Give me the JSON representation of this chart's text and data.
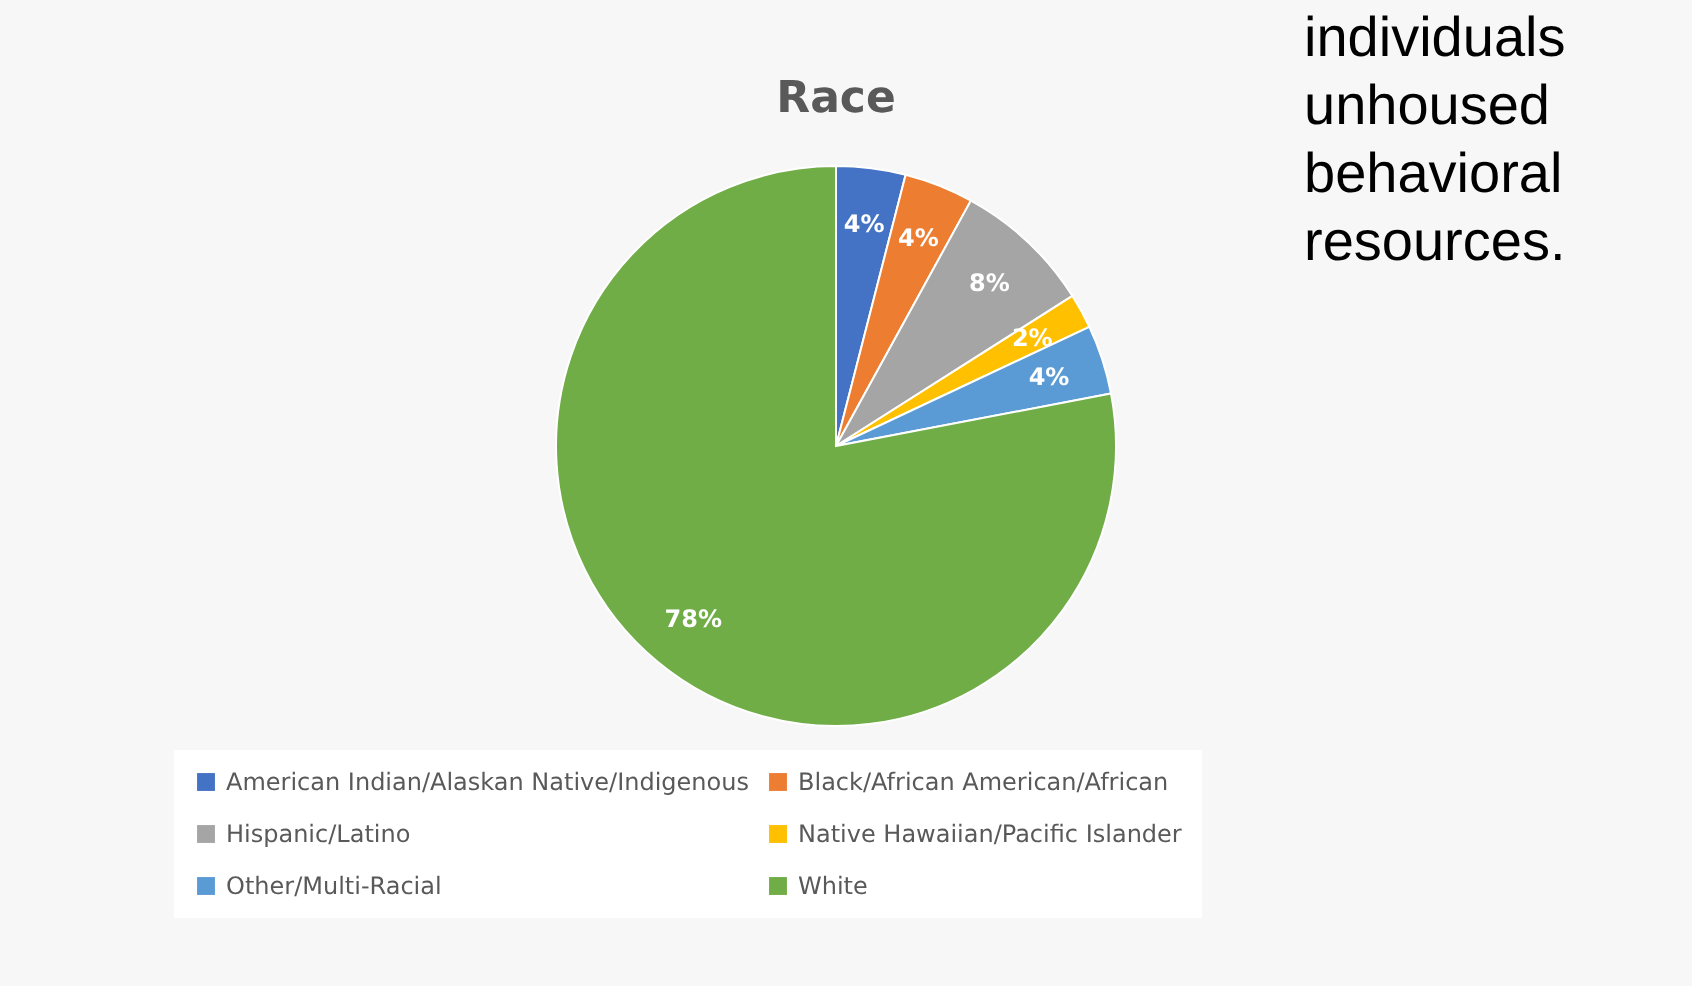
{
  "chart_data": {
    "type": "pie",
    "title": "Race",
    "categories": [
      "American Indian/Alaskan Native/Indigenous",
      "Black/African American/African",
      "Hispanic/Latino",
      "Native Hawaiian/Pacific Islander",
      "Other/Multi-Racial",
      "White"
    ],
    "values": [
      4,
      4,
      8,
      2,
      4,
      78
    ],
    "colors": [
      "#4472c4",
      "#ed7d31",
      "#a5a5a5",
      "#ffc000",
      "#5b9bd5",
      "#70ad47"
    ],
    "value_labels": [
      "4%",
      "4%",
      "8%",
      "2%",
      "4%",
      "78%"
    ],
    "legend": "bottom",
    "annotations": [
      "individuals",
      "unhoused",
      "behavioral",
      "resources."
    ]
  }
}
